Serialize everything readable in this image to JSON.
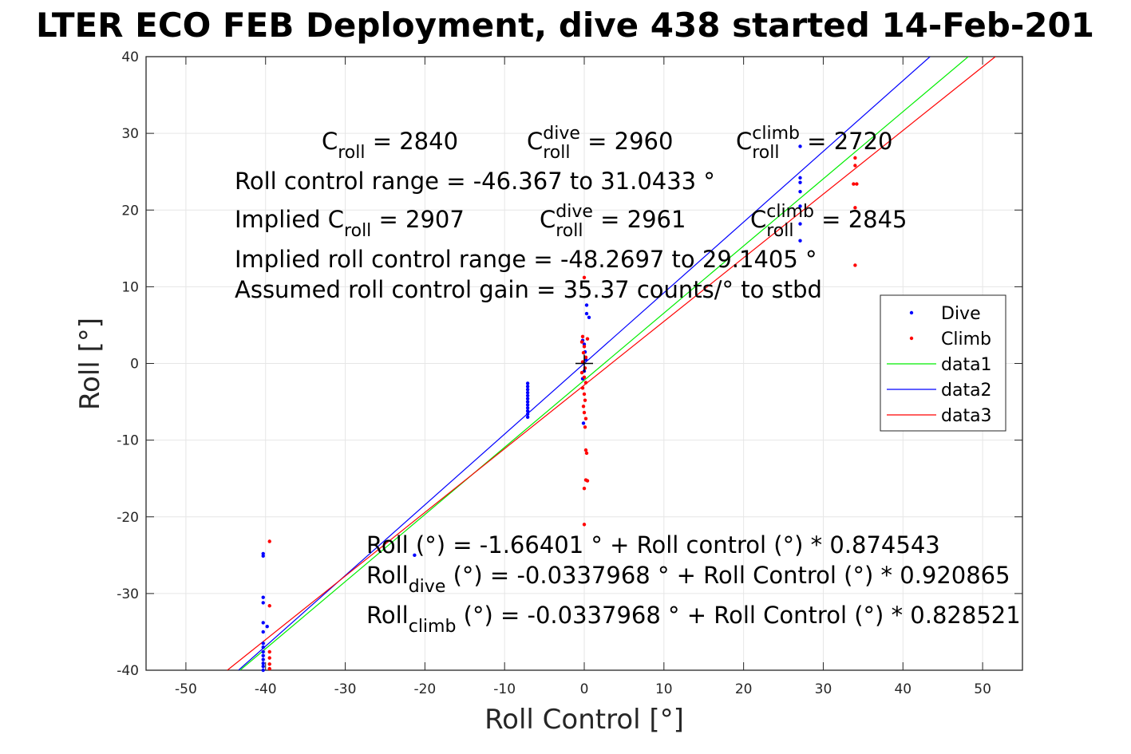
{
  "chart_data": {
    "type": "scatter",
    "title": "LTER ECO FEB Deployment, dive 438 started 14-Feb-201",
    "xlabel": "Roll Control [°]",
    "ylabel": "Roll [°]",
    "xlim": [
      -55,
      55
    ],
    "ylim": [
      -40,
      40
    ],
    "xticks": [
      -50,
      -40,
      -30,
      -20,
      -10,
      0,
      10,
      20,
      30,
      40,
      50
    ],
    "yticks": [
      -40,
      -30,
      -20,
      -10,
      0,
      10,
      20,
      30,
      40
    ],
    "grid": true,
    "legend_position": "right",
    "series": [
      {
        "name": "Dive",
        "kind": "points",
        "color": "#0000ff",
        "points": [
          [
            -40.3,
            -24.8
          ],
          [
            -40.3,
            -25.1
          ],
          [
            -40.3,
            -30.5
          ],
          [
            -40.3,
            -31.2
          ],
          [
            -40.3,
            -33.8
          ],
          [
            -39.8,
            -34.3
          ],
          [
            -40.3,
            -35.0
          ],
          [
            -40.3,
            -36.5
          ],
          [
            -40.3,
            -37.0
          ],
          [
            -40.3,
            -37.6
          ],
          [
            -40.3,
            -38.1
          ],
          [
            -40.3,
            -38.6
          ],
          [
            -40.3,
            -39.1
          ],
          [
            -40.3,
            -39.5
          ],
          [
            -40.3,
            -40.0
          ],
          [
            -21.3,
            -25.0
          ],
          [
            -7.1,
            -2.6
          ],
          [
            -7.1,
            -3.0
          ],
          [
            -7.1,
            -3.4
          ],
          [
            -7.1,
            -3.8
          ],
          [
            -7.1,
            -4.2
          ],
          [
            -7.1,
            -4.6
          ],
          [
            -7.1,
            -5.0
          ],
          [
            -7.1,
            -5.4
          ],
          [
            -7.1,
            -5.8
          ],
          [
            -7.1,
            -6.2
          ],
          [
            -7.1,
            -6.6
          ],
          [
            -7.1,
            -7.0
          ],
          [
            0.3,
            7.6
          ],
          [
            0.6,
            6.0
          ],
          [
            0.3,
            6.5
          ],
          [
            -0.2,
            3.0
          ],
          [
            0.0,
            2.5
          ],
          [
            0.1,
            1.5
          ],
          [
            0.2,
            0.5
          ],
          [
            0.0,
            -1.0
          ],
          [
            -0.2,
            -2.0
          ],
          [
            -0.1,
            -7.8
          ],
          [
            27.1,
            28.3
          ],
          [
            27.1,
            24.2
          ],
          [
            27.1,
            23.6
          ],
          [
            27.1,
            22.4
          ],
          [
            27.1,
            20.5
          ],
          [
            27.1,
            18.2
          ],
          [
            27.1,
            16.0
          ]
        ]
      },
      {
        "name": "Climb",
        "kind": "points",
        "color": "#ff0000",
        "points": [
          [
            -39.5,
            -23.2
          ],
          [
            -39.5,
            -31.6
          ],
          [
            -39.5,
            -37.6
          ],
          [
            -39.5,
            -38.4
          ],
          [
            -39.5,
            -39.2
          ],
          [
            -39.5,
            -39.8
          ],
          [
            0.0,
            11.2
          ],
          [
            -0.2,
            3.5
          ],
          [
            0.4,
            3.2
          ],
          [
            -0.3,
            2.8
          ],
          [
            0.0,
            2.2
          ],
          [
            -0.1,
            1.4
          ],
          [
            0.2,
            0.8
          ],
          [
            -0.2,
            0.2
          ],
          [
            0.1,
            -0.6
          ],
          [
            -0.3,
            -1.2
          ],
          [
            0.0,
            -1.8
          ],
          [
            0.2,
            -2.5
          ],
          [
            -0.2,
            -3.2
          ],
          [
            0.0,
            -4.0
          ],
          [
            0.1,
            -4.8
          ],
          [
            -0.1,
            -5.6
          ],
          [
            0.0,
            -6.4
          ],
          [
            0.2,
            -7.2
          ],
          [
            0.1,
            -8.3
          ],
          [
            0.2,
            -11.3
          ],
          [
            0.3,
            -11.7
          ],
          [
            0.2,
            -15.2
          ],
          [
            0.4,
            -15.3
          ],
          [
            0.0,
            -16.3
          ],
          [
            0.0,
            -21.0
          ],
          [
            34.0,
            26.8
          ],
          [
            34.0,
            25.8
          ],
          [
            33.8,
            23.4
          ],
          [
            34.2,
            23.4
          ],
          [
            34.0,
            20.3
          ],
          [
            34.0,
            12.8
          ]
        ]
      },
      {
        "name": "data1",
        "kind": "line",
        "color": "#00ee00",
        "points": [
          [
            -43.2,
            -40.0
          ],
          [
            48.2,
            40.0
          ]
        ]
      },
      {
        "name": "data2",
        "kind": "line",
        "color": "#0000ff",
        "points": [
          [
            -43.4,
            -40.0
          ],
          [
            43.4,
            40.0
          ]
        ]
      },
      {
        "name": "data3",
        "kind": "line",
        "color": "#ff0000",
        "points": [
          [
            -44.8,
            -40.0
          ],
          [
            51.6,
            40.0
          ]
        ]
      }
    ],
    "center_marker": [
      0,
      0
    ],
    "annotations": [
      {
        "id": "c-roll",
        "base": "C",
        "sub": "roll",
        "tail": " = 2840"
      },
      {
        "id": "c-roll-dive",
        "base": "C",
        "sup": "dive",
        "sub": "roll",
        "tail": " = 2960"
      },
      {
        "id": "c-roll-climb",
        "base": "C",
        "sup": "climb",
        "sub": "roll",
        "tail": " = 2720"
      },
      {
        "id": "roll-control-range",
        "text": "Roll control range = -46.367 to 31.0433 °"
      },
      {
        "id": "implied-c-roll",
        "base": "Implied C",
        "sub": "roll",
        "tail": " = 2907"
      },
      {
        "id": "implied-c-roll-dive",
        "base": "C",
        "sup": "dive",
        "sub": "roll",
        "tail": " = 2961"
      },
      {
        "id": "implied-c-roll-climb",
        "base": "C",
        "sup": "climb",
        "sub": "roll",
        "tail": " = 2845"
      },
      {
        "id": "implied-roll-control-range",
        "text": "Implied roll control range = -48.2697 to 29.1405 °"
      },
      {
        "id": "assumed-roll-control-gain",
        "text": "Assumed roll control gain = 35.37 counts/° to stbd"
      },
      {
        "id": "fit-eq",
        "text": "Roll (°) = -1.66401 ° + Roll control (°) * 0.874543"
      },
      {
        "id": "fit-eq-dive",
        "base": "Roll",
        "sub": "dive",
        "tail": " (°) = -0.0337968 ° + Roll Control (°) * 0.920865"
      },
      {
        "id": "fit-eq-climb",
        "base": "Roll",
        "sub": "climb",
        "tail": " (°) = -0.0337968 ° + Roll Control (°) * 0.828521"
      }
    ]
  }
}
